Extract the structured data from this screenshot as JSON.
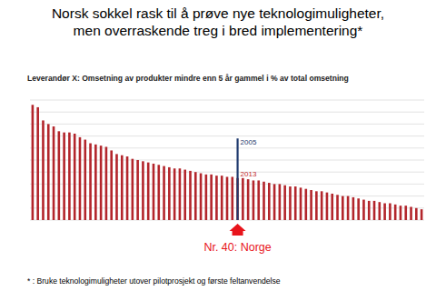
{
  "chart_data": {
    "type": "bar",
    "title": "Norsk sokkel rask til å prøve nye teknologimuligheter, men overraskende treg i bred implementering*",
    "subtitle": "Leverandør X: Omsetning av produkter mindre enn 5 år gammel i % av total omsetning",
    "footnote": "* : Bruke teknologimuligheter utover pilotprosjekt og første feltanvendelse",
    "categories": [
      null,
      null,
      null,
      null,
      null,
      null,
      null,
      null,
      null,
      null,
      null,
      null,
      null,
      null,
      null,
      null,
      null,
      null,
      null,
      null,
      null,
      null,
      null,
      null,
      null,
      null,
      null,
      null,
      null,
      null,
      null,
      null,
      null,
      null,
      null,
      null,
      null,
      null,
      null,
      null,
      null,
      null,
      null,
      null,
      null,
      null,
      null,
      null,
      null,
      null,
      null,
      null,
      null,
      null,
      null,
      null,
      null,
      null,
      null,
      null,
      null,
      null,
      null,
      null,
      null,
      null,
      null,
      null,
      null,
      null,
      null,
      null,
      null,
      null,
      null
    ],
    "values": [
      96,
      94,
      83,
      80,
      78,
      74,
      73,
      73,
      72,
      69,
      67,
      64,
      63,
      62,
      61,
      58,
      55,
      54,
      53,
      51,
      50,
      49,
      48,
      47,
      46,
      45,
      44,
      43,
      43,
      42,
      41,
      40,
      39,
      38,
      38,
      37,
      37,
      36,
      36,
      35,
      35,
      34,
      33,
      33,
      32,
      31,
      30,
      30,
      29,
      28,
      28,
      27,
      26,
      25,
      24,
      24,
      23,
      22,
      21,
      20,
      20,
      19,
      18,
      17,
      16,
      16,
      15,
      14,
      14,
      13,
      12,
      12,
      11,
      10,
      9
    ],
    "color": "#b3262c",
    "ylim": [
      0,
      100
    ],
    "yticks": [
      0,
      10,
      20,
      30,
      40,
      50,
      60,
      70,
      80,
      90,
      100
    ],
    "grid": true,
    "tick_labels": false,
    "highlight": {
      "index": 39,
      "label": "Nr. 40: Norge",
      "label_color": "#e8141b",
      "value_2005": 68,
      "label_2005": "2005",
      "color_2005": "#1f3a6e",
      "label_2013": "2013",
      "color_2013": "#c0282d"
    }
  }
}
